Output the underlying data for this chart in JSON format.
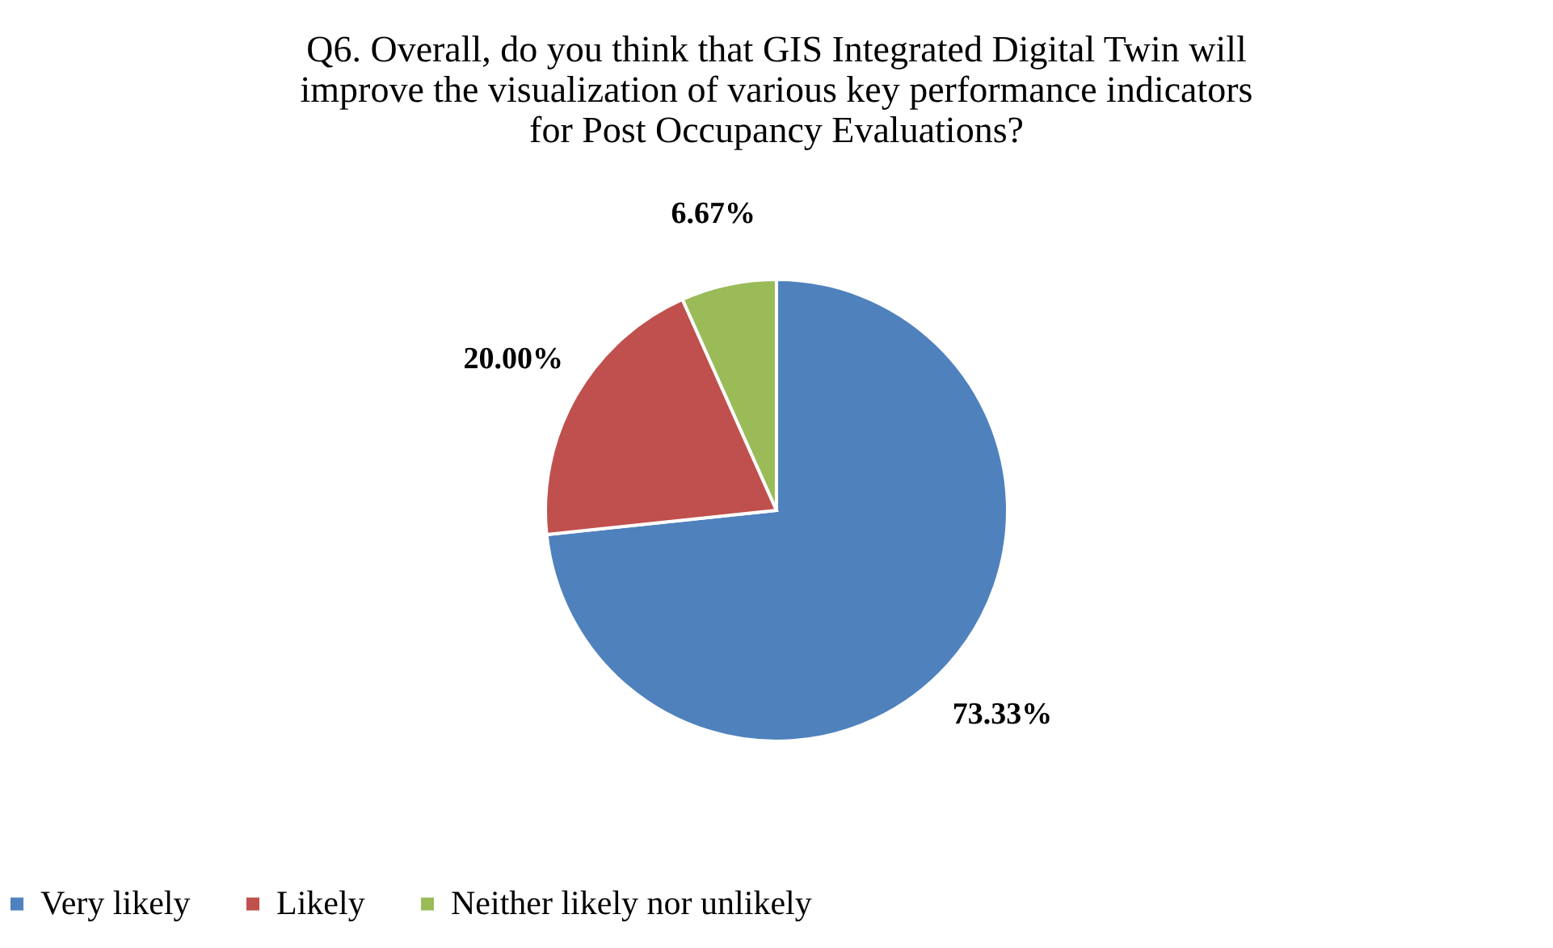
{
  "chart_data": {
    "type": "pie",
    "title": [
      "Q6. Overall, do you think that GIS Integrated Digital Twin will",
      "improve the visualization of various key performance indicators",
      "for Post Occupancy Evaluations?"
    ],
    "categories": [
      "Very likely",
      "Likely",
      "Neither likely nor unlikely"
    ],
    "values": [
      73.33,
      20.0,
      6.67
    ],
    "colors": [
      "#4f81bd",
      "#c0504d",
      "#9bbb59"
    ],
    "value_labels": [
      "73.33%",
      "20.00%",
      "6.67%"
    ],
    "legend": "bottom"
  }
}
